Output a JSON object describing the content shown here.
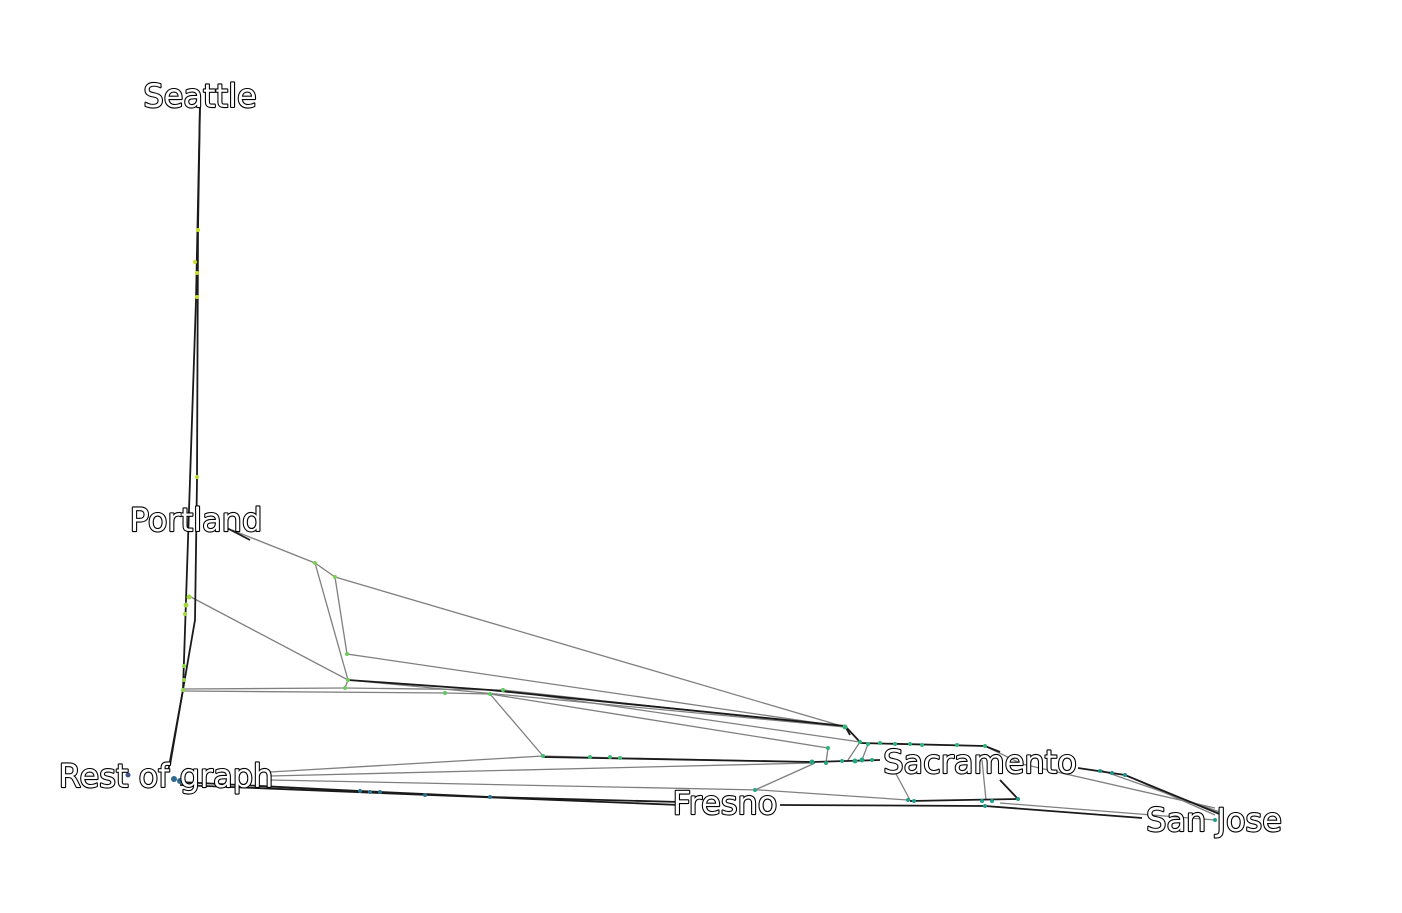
{
  "map": {
    "cities": [
      {
        "id": "seattle",
        "name": "Seattle"
      },
      {
        "id": "portland",
        "name": "Portland"
      },
      {
        "id": "rest",
        "name": "Rest of graph"
      },
      {
        "id": "fresno",
        "name": "Fresno"
      },
      {
        "id": "sacramento",
        "name": "Sacramento"
      },
      {
        "id": "sanjose",
        "name": "San Jose"
      }
    ]
  }
}
